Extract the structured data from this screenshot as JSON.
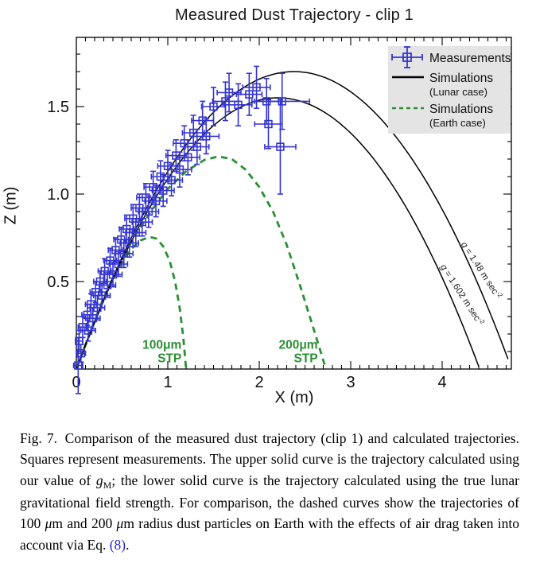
{
  "chart_data": {
    "type": "scatter",
    "title": "Measured Dust Trajectory - clip 1",
    "xlabel": "X (m)",
    "ylabel": "Z (m)",
    "xlim": [
      0,
      4.76
    ],
    "ylim": [
      0,
      1.9
    ],
    "x_major_ticks": [
      "0",
      "1",
      "2",
      "3",
      "4"
    ],
    "y_major_ticks": [
      "0.5",
      "1.0",
      "1.5"
    ],
    "minor_tick_step": 0.1,
    "grid": false,
    "colors": {
      "measurement_blue": "#3434d3",
      "simulation_black": "#000000",
      "earth_green": "#2a8f33",
      "legend_bg": "#e4e4e4"
    },
    "measurements": {
      "label": "Measurements",
      "points_xz_ex_ez": [
        [
          0.02,
          0.02,
          0.05,
          0.16
        ],
        [
          0.05,
          0.09,
          0.05,
          0.05
        ],
        [
          0.03,
          0.16,
          0.04,
          0.06
        ],
        [
          0.07,
          0.24,
          0.05,
          0.06
        ],
        [
          0.13,
          0.22,
          0.08,
          0.06
        ],
        [
          0.12,
          0.31,
          0.06,
          0.06
        ],
        [
          0.18,
          0.29,
          0.08,
          0.06
        ],
        [
          0.16,
          0.37,
          0.06,
          0.06
        ],
        [
          0.23,
          0.35,
          0.08,
          0.07
        ],
        [
          0.21,
          0.44,
          0.06,
          0.06
        ],
        [
          0.28,
          0.42,
          0.09,
          0.07
        ],
        [
          0.26,
          0.5,
          0.07,
          0.06
        ],
        [
          0.34,
          0.48,
          0.09,
          0.07
        ],
        [
          0.31,
          0.56,
          0.07,
          0.07
        ],
        [
          0.4,
          0.54,
          0.1,
          0.07
        ],
        [
          0.37,
          0.62,
          0.07,
          0.07
        ],
        [
          0.46,
          0.6,
          0.1,
          0.07
        ],
        [
          0.43,
          0.68,
          0.08,
          0.07
        ],
        [
          0.52,
          0.66,
          0.1,
          0.08
        ],
        [
          0.49,
          0.74,
          0.08,
          0.07
        ],
        [
          0.58,
          0.72,
          0.1,
          0.08
        ],
        [
          0.55,
          0.8,
          0.08,
          0.08
        ],
        [
          0.65,
          0.78,
          0.11,
          0.08
        ],
        [
          0.62,
          0.86,
          0.09,
          0.08
        ],
        [
          0.72,
          0.84,
          0.11,
          0.08
        ],
        [
          0.69,
          0.92,
          0.09,
          0.08
        ],
        [
          0.79,
          0.9,
          0.11,
          0.09
        ],
        [
          0.76,
          0.98,
          0.1,
          0.08
        ],
        [
          0.87,
          0.96,
          0.12,
          0.09
        ],
        [
          0.84,
          1.04,
          0.1,
          0.09
        ],
        [
          0.95,
          1.02,
          0.12,
          0.09
        ],
        [
          0.92,
          1.1,
          0.1,
          0.09
        ],
        [
          1.04,
          1.08,
          0.12,
          0.09
        ],
        [
          1.0,
          1.16,
          0.11,
          0.09
        ],
        [
          1.13,
          1.14,
          0.13,
          0.1
        ],
        [
          1.09,
          1.22,
          0.11,
          0.09
        ],
        [
          1.22,
          1.21,
          0.13,
          0.1
        ],
        [
          1.18,
          1.29,
          0.12,
          0.1
        ],
        [
          1.32,
          1.27,
          0.13,
          0.1
        ],
        [
          1.28,
          1.35,
          0.12,
          0.1
        ],
        [
          1.42,
          1.33,
          0.14,
          0.1
        ],
        [
          1.38,
          1.42,
          0.12,
          0.11
        ],
        [
          1.5,
          1.5,
          0.13,
          0.11
        ],
        [
          1.63,
          1.53,
          0.14,
          0.11
        ],
        [
          1.67,
          1.58,
          0.13,
          0.11
        ],
        [
          1.77,
          1.51,
          0.15,
          0.12
        ],
        [
          1.89,
          1.57,
          0.14,
          0.12
        ],
        [
          1.97,
          1.61,
          0.15,
          0.12
        ],
        [
          2.08,
          1.53,
          0.16,
          0.13
        ],
        [
          2.1,
          1.4,
          0.15,
          0.14
        ],
        [
          2.25,
          1.53,
          0.3,
          0.16
        ],
        [
          2.23,
          1.27,
          0.17,
          0.27
        ]
      ]
    },
    "simulations_lunar": {
      "label": "Simulations",
      "sublabel": "(Lunar case)",
      "curves": [
        {
          "name": "g = 1.48 m sec^-2",
          "peak_x": 2.38,
          "peak_z": 1.7,
          "x_zero": 4.76
        },
        {
          "name": "g = 1.602 m sec^-2",
          "peak_x": 2.205,
          "peak_z": 1.55,
          "x_zero": 4.41
        }
      ]
    },
    "simulations_earth": {
      "label": "Simulations",
      "sublabel": "(Earth case)",
      "curves": [
        {
          "name": "100um STP",
          "points": [
            [
              0,
              0
            ],
            [
              0.1,
              0.135
            ],
            [
              0.2,
              0.27
            ],
            [
              0.3,
              0.4
            ],
            [
              0.4,
              0.515
            ],
            [
              0.5,
              0.61
            ],
            [
              0.6,
              0.685
            ],
            [
              0.7,
              0.735
            ],
            [
              0.8,
              0.755
            ],
            [
              0.88,
              0.745
            ],
            [
              0.95,
              0.7
            ],
            [
              1.02,
              0.62
            ],
            [
              1.08,
              0.5
            ],
            [
              1.13,
              0.35
            ],
            [
              1.17,
              0.18
            ],
            [
              1.2,
              0.0
            ]
          ]
        },
        {
          "name": "200um STP",
          "points": [
            [
              0,
              0
            ],
            [
              0.15,
              0.21
            ],
            [
              0.3,
              0.41
            ],
            [
              0.45,
              0.575
            ],
            [
              0.6,
              0.725
            ],
            [
              0.8,
              0.89
            ],
            [
              1.0,
              1.03
            ],
            [
              1.2,
              1.13
            ],
            [
              1.4,
              1.195
            ],
            [
              1.55,
              1.215
            ],
            [
              1.7,
              1.2
            ],
            [
              1.85,
              1.14
            ],
            [
              2.0,
              1.04
            ],
            [
              2.15,
              0.9
            ],
            [
              2.3,
              0.71
            ],
            [
              2.45,
              0.47
            ],
            [
              2.6,
              0.22
            ],
            [
              2.7,
              0.05
            ],
            [
              2.73,
              0.0
            ]
          ]
        }
      ]
    },
    "curve_annotations": [
      {
        "italic": "g",
        "mid": " = 1.48 m sec",
        "sup": "-2",
        "x": 4.4,
        "z": 0.555,
        "angle": 57
      },
      {
        "italic": "g",
        "mid": " = 1.602 m sec",
        "sup": "-2",
        "x": 4.19,
        "z": 0.415,
        "angle": 57
      }
    ],
    "earth_labels": [
      {
        "lines": [
          "100μm",
          "STP"
        ],
        "x": 1.15,
        "z": 0.115
      },
      {
        "lines": [
          "200μm",
          "STP"
        ],
        "x": 2.64,
        "z": 0.115
      }
    ],
    "legend": {
      "entries": [
        {
          "symbol": "measurement",
          "label": "Measurements",
          "sublabel": ""
        },
        {
          "symbol": "solid-line",
          "label": "Simulations",
          "sublabel": "(Lunar case)"
        },
        {
          "symbol": "dashed-line",
          "label": "Simulations",
          "sublabel": "(Earth case)"
        }
      ]
    }
  },
  "caption": {
    "segments": [
      {
        "t": "Fig. 7.",
        "s": "fig"
      },
      {
        "t": "Comparison of the measured dust trajectory (clip 1) and calculated trajectories. Squares represent measurements. The upper solid curve is the trajectory calculated using our value of ",
        "s": "n"
      },
      {
        "t": "g",
        "s": "i"
      },
      {
        "t": "M",
        "s": "sub"
      },
      {
        "t": "; the lower solid curve is the trajectory calculated using the true lunar gravitational field strength. For comparison, the dashed curves show the trajectories of 100 ",
        "s": "n"
      },
      {
        "t": "μ",
        "s": "i"
      },
      {
        "t": "m and 200 ",
        "s": "n"
      },
      {
        "t": "μ",
        "s": "i"
      },
      {
        "t": "m radius dust particles on Earth with the effects of air drag taken into account via Eq. ",
        "s": "n"
      },
      {
        "t": "(8)",
        "s": "link"
      },
      {
        "t": ".",
        "s": "n"
      }
    ]
  }
}
